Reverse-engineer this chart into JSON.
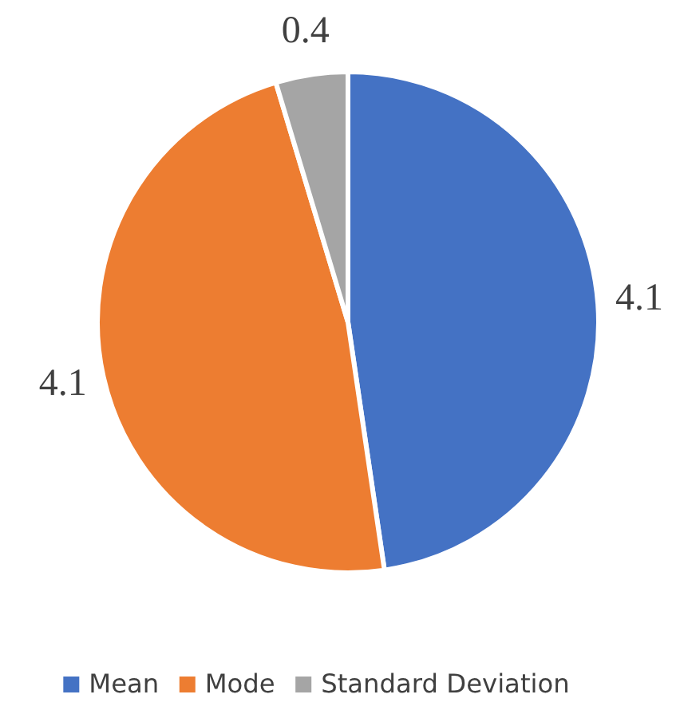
{
  "chart_data": {
    "type": "pie",
    "categories": [
      "Mean",
      "Mode",
      "Standard Deviation"
    ],
    "values": [
      4.1,
      4.1,
      0.4
    ],
    "colors": [
      "#4472c4",
      "#ed7d31",
      "#a5a5a5"
    ],
    "data_labels": true,
    "legend": "bottom"
  }
}
